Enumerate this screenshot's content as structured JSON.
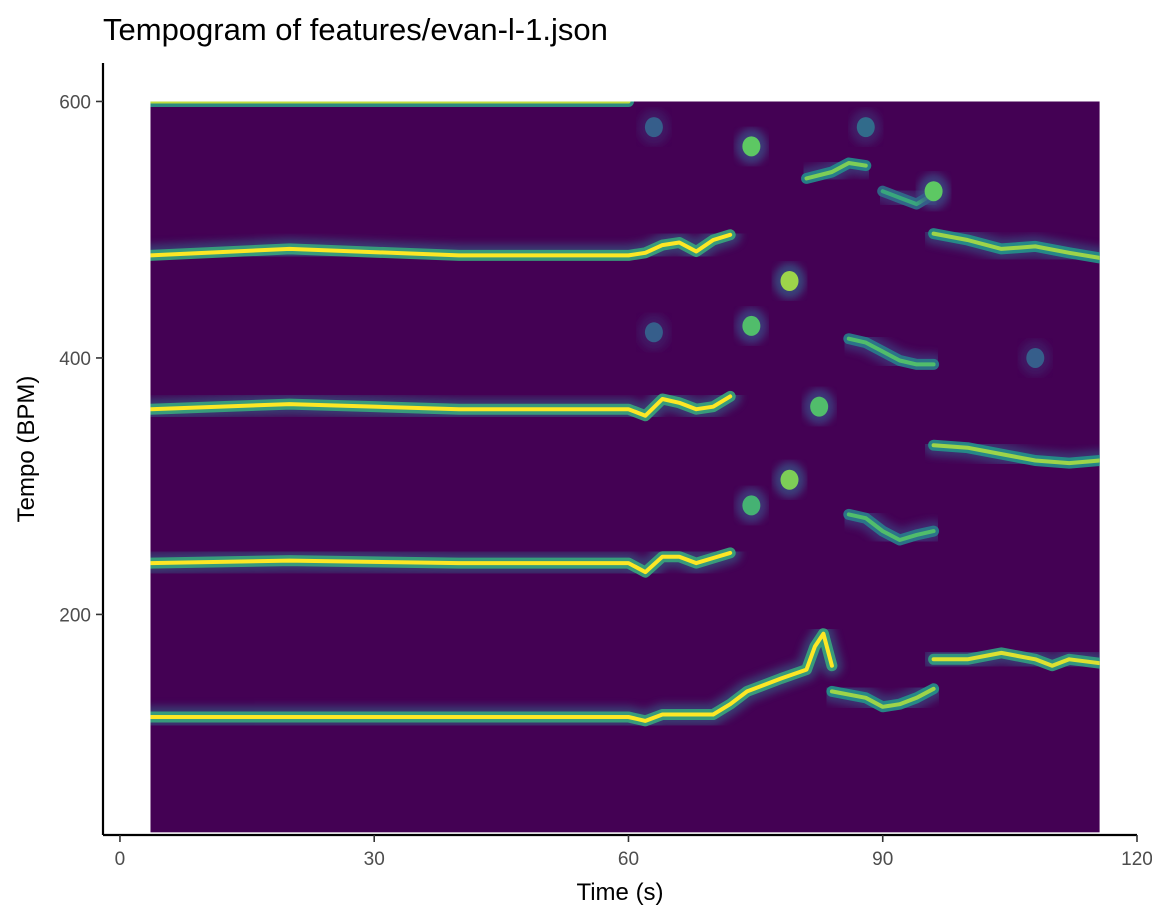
{
  "chart_data": {
    "type": "heatmap",
    "title": "Tempogram of features/evan-l-1.json",
    "xlabel": "Time (s)",
    "ylabel": "Tempo (BPM)",
    "xlim": [
      -2,
      120
    ],
    "ylim": [
      28,
      630
    ],
    "x_ticks": [
      0,
      30,
      60,
      90,
      120
    ],
    "x_tick_labels": [
      "0",
      "30",
      "60",
      "90",
      "120"
    ],
    "y_ticks": [
      200,
      400,
      600
    ],
    "y_tick_labels": [
      "200",
      "400",
      "600"
    ],
    "data_extent": {
      "x": [
        3.6,
        115.6
      ],
      "y": [
        30,
        600
      ]
    },
    "grid": false,
    "legend": "none",
    "colormap": [
      "#440154",
      "#3b528b",
      "#21908c",
      "#5dc863",
      "#fde725"
    ],
    "background_color": "#440154",
    "ridges": [
      {
        "strength": 1.0,
        "points": [
          [
            3.6,
            120
          ],
          [
            20,
            120
          ],
          [
            40,
            120
          ],
          [
            60,
            120
          ],
          [
            62,
            117
          ],
          [
            64,
            122
          ],
          [
            70,
            122
          ],
          [
            72,
            130
          ],
          [
            74,
            140
          ],
          [
            78,
            150
          ],
          [
            81,
            157
          ],
          [
            82,
            175
          ],
          [
            83,
            185
          ],
          [
            84,
            160
          ]
        ]
      },
      {
        "strength": 1.0,
        "points": [
          [
            3.6,
            240
          ],
          [
            20,
            242
          ],
          [
            40,
            240
          ],
          [
            60,
            240
          ],
          [
            62,
            233
          ],
          [
            64,
            245
          ],
          [
            66,
            245
          ],
          [
            68,
            240
          ],
          [
            70,
            244
          ],
          [
            72,
            248
          ]
        ]
      },
      {
        "strength": 1.0,
        "points": [
          [
            3.6,
            360
          ],
          [
            20,
            364
          ],
          [
            40,
            360
          ],
          [
            60,
            360
          ],
          [
            62,
            355
          ],
          [
            64,
            368
          ],
          [
            66,
            365
          ],
          [
            68,
            360
          ],
          [
            70,
            362
          ],
          [
            72,
            370
          ]
        ]
      },
      {
        "strength": 1.0,
        "points": [
          [
            3.6,
            480
          ],
          [
            20,
            485
          ],
          [
            40,
            480
          ],
          [
            60,
            480
          ],
          [
            62,
            482
          ],
          [
            64,
            488
          ],
          [
            66,
            490
          ],
          [
            68,
            483
          ],
          [
            70,
            492
          ],
          [
            72,
            496
          ]
        ]
      },
      {
        "strength": 0.9,
        "points": [
          [
            3.6,
            600
          ],
          [
            20,
            600
          ],
          [
            40,
            600
          ],
          [
            60,
            600
          ]
        ]
      },
      {
        "strength": 0.85,
        "points": [
          [
            84,
            140
          ],
          [
            88,
            135
          ],
          [
            90,
            128
          ],
          [
            92,
            130
          ],
          [
            94,
            135
          ],
          [
            96,
            142
          ]
        ]
      },
      {
        "strength": 0.95,
        "points": [
          [
            96,
            165
          ],
          [
            100,
            165
          ],
          [
            104,
            170
          ],
          [
            108,
            165
          ],
          [
            110,
            160
          ],
          [
            112,
            165
          ],
          [
            115.6,
            162
          ]
        ]
      },
      {
        "strength": 0.85,
        "points": [
          [
            96,
            332
          ],
          [
            100,
            330
          ],
          [
            104,
            325
          ],
          [
            108,
            320
          ],
          [
            112,
            318
          ],
          [
            115.6,
            320
          ]
        ]
      },
      {
        "strength": 0.85,
        "points": [
          [
            96,
            497
          ],
          [
            100,
            492
          ],
          [
            104,
            485
          ],
          [
            108,
            487
          ],
          [
            112,
            482
          ],
          [
            115.6,
            478
          ]
        ]
      },
      {
        "strength": 0.8,
        "points": [
          [
            81,
            540
          ],
          [
            84,
            545
          ],
          [
            86,
            552
          ],
          [
            88,
            550
          ]
        ]
      },
      {
        "strength": 0.7,
        "points": [
          [
            86,
            415
          ],
          [
            88,
            412
          ],
          [
            90,
            405
          ],
          [
            92,
            398
          ],
          [
            94,
            395
          ],
          [
            96,
            395
          ]
        ]
      },
      {
        "strength": 0.7,
        "points": [
          [
            86,
            278
          ],
          [
            88,
            275
          ],
          [
            90,
            265
          ],
          [
            92,
            258
          ],
          [
            94,
            262
          ],
          [
            96,
            265
          ]
        ]
      },
      {
        "strength": 0.6,
        "points": [
          [
            90,
            530
          ],
          [
            92,
            525
          ],
          [
            94,
            520
          ],
          [
            96,
            528
          ]
        ]
      }
    ],
    "blobs": [
      {
        "t": 74.5,
        "bpm": 565,
        "strength": 0.75
      },
      {
        "t": 74.5,
        "bpm": 425,
        "strength": 0.7
      },
      {
        "t": 74.5,
        "bpm": 285,
        "strength": 0.65
      },
      {
        "t": 79,
        "bpm": 460,
        "strength": 0.85
      },
      {
        "t": 79,
        "bpm": 305,
        "strength": 0.8
      },
      {
        "t": 82.5,
        "bpm": 362,
        "strength": 0.7
      },
      {
        "t": 96,
        "bpm": 530,
        "strength": 0.75
      },
      {
        "t": 63,
        "bpm": 420,
        "strength": 0.3
      },
      {
        "t": 63,
        "bpm": 580,
        "strength": 0.3
      },
      {
        "t": 88,
        "bpm": 580,
        "strength": 0.35
      },
      {
        "t": 108,
        "bpm": 400,
        "strength": 0.3
      }
    ]
  }
}
